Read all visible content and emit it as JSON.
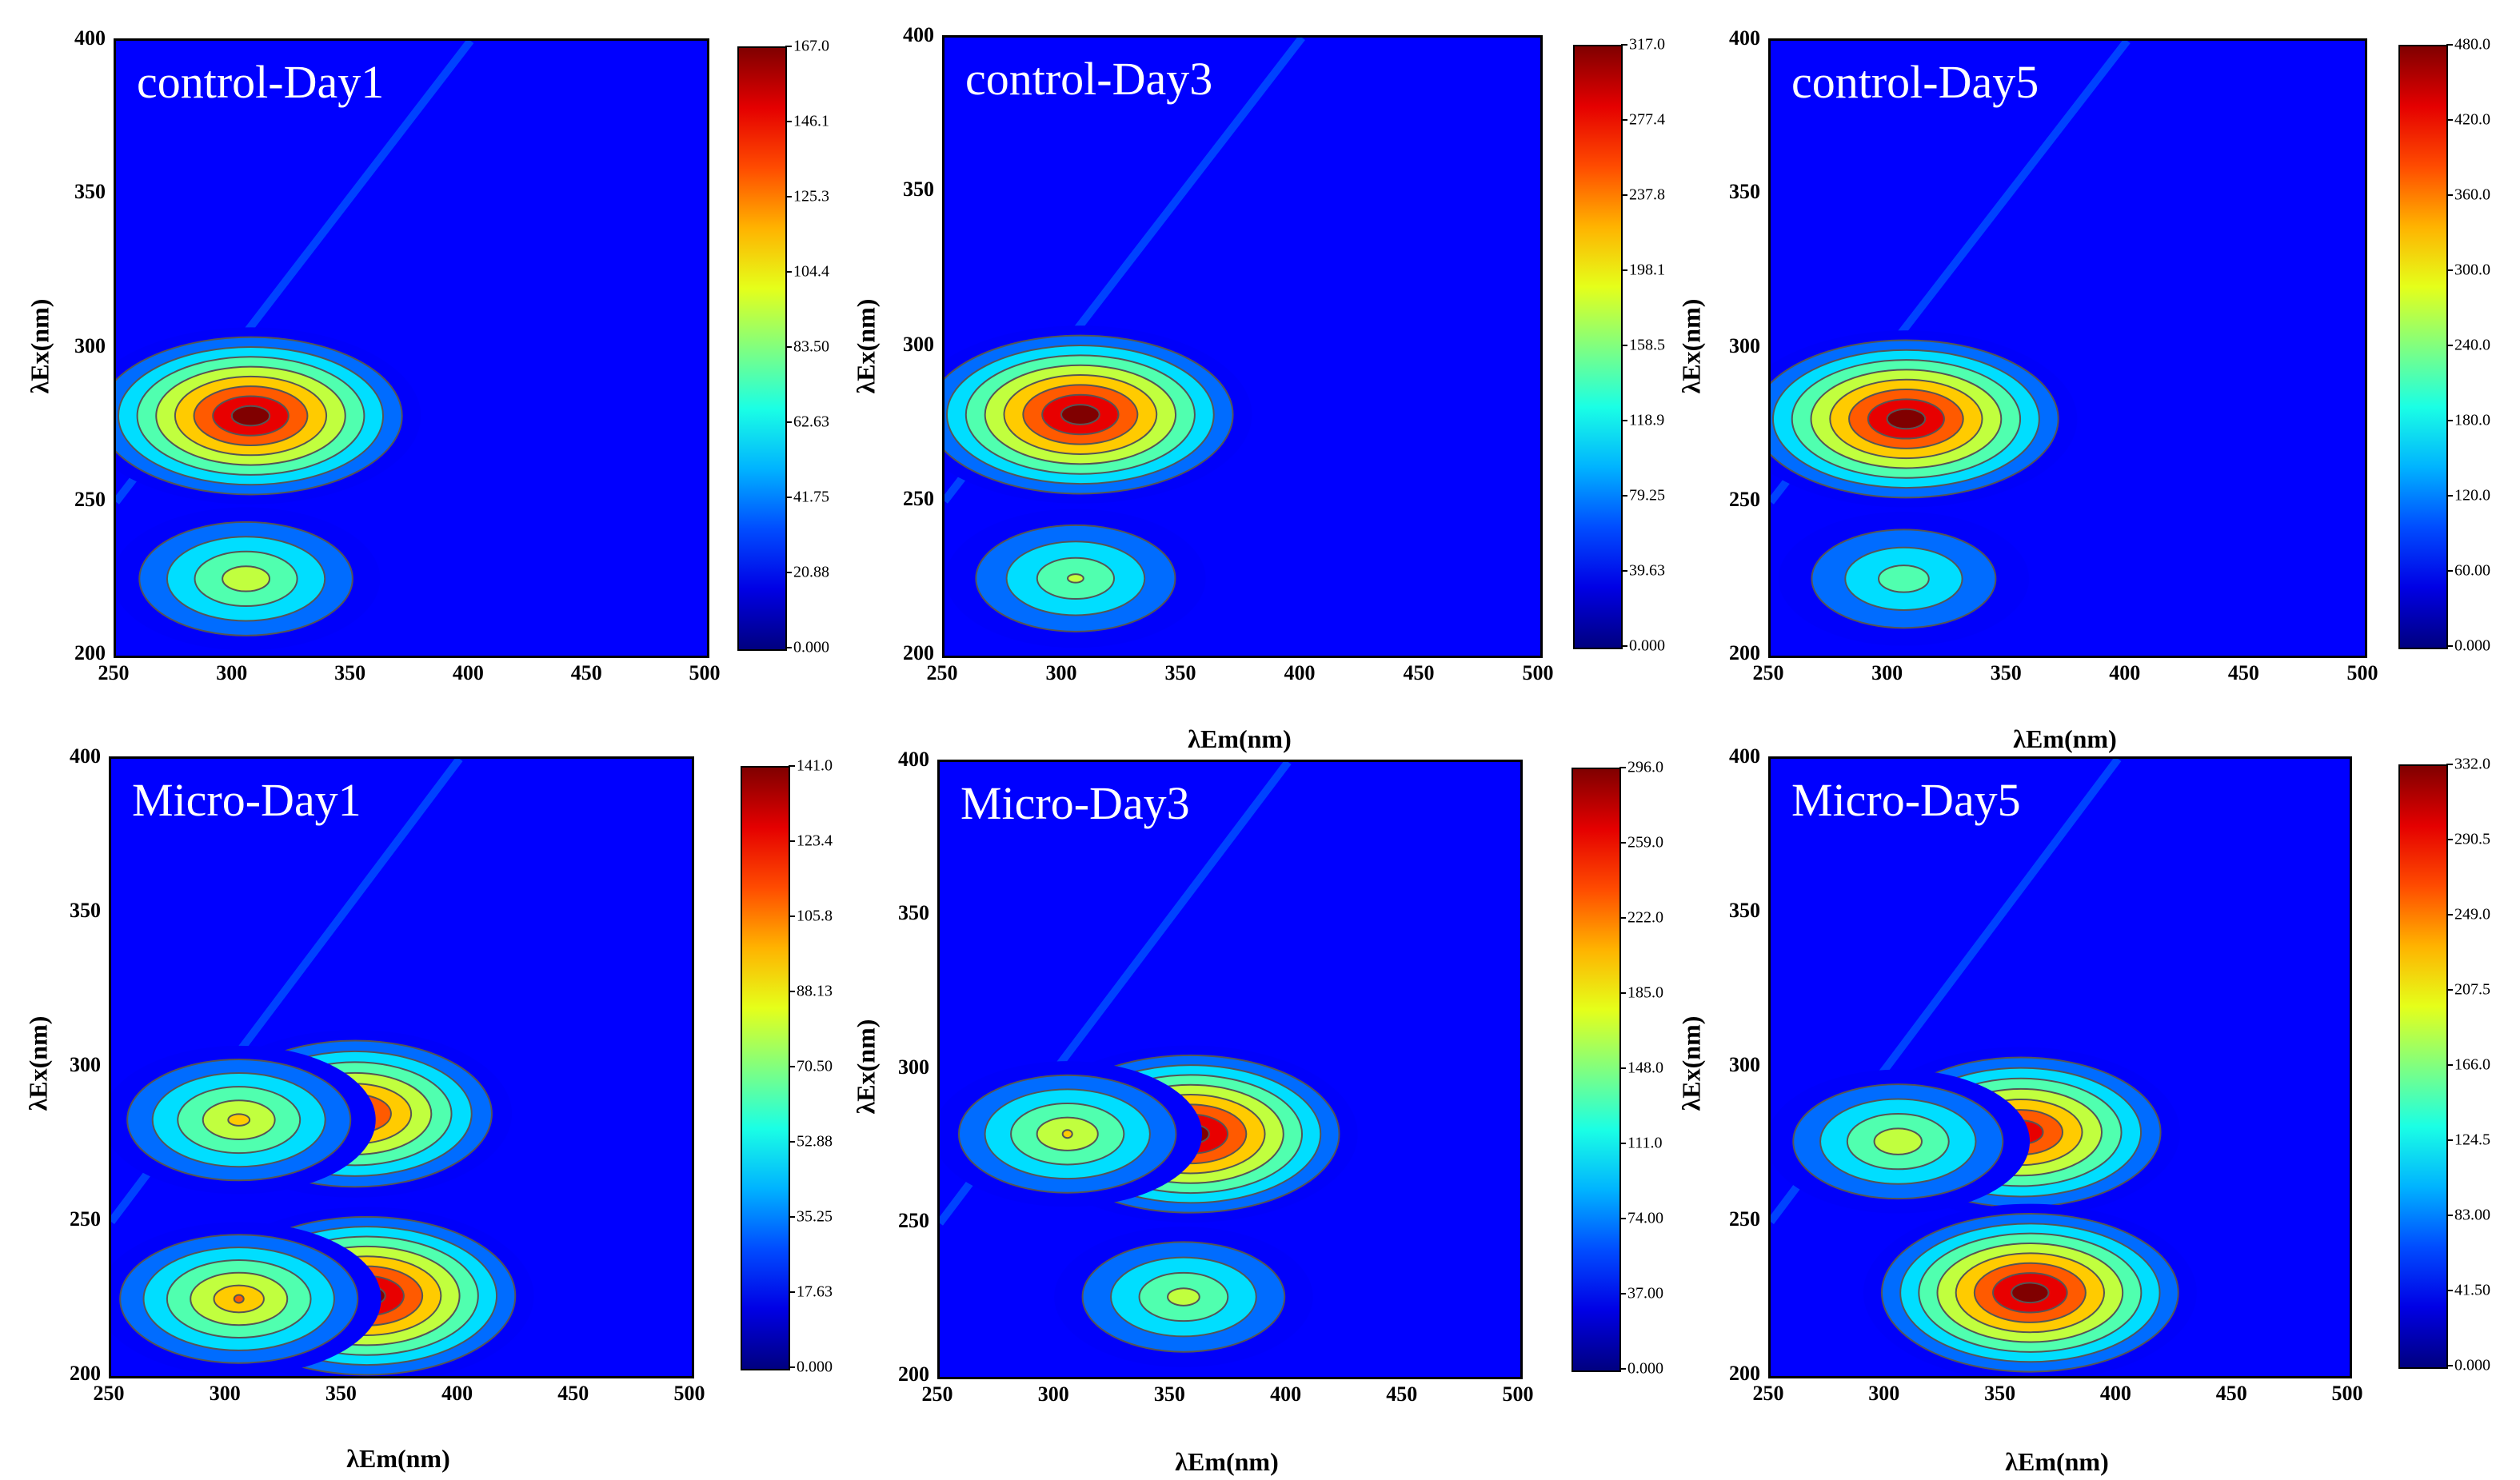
{
  "axes": {
    "x_label": "λEm(nm)",
    "y_label": "λEx(nm)",
    "x_ticks": [
      "250",
      "300",
      "350",
      "400",
      "450",
      "500"
    ],
    "y_ticks": [
      "200",
      "250",
      "300",
      "350",
      "400"
    ]
  },
  "chart_data": [
    {
      "type": "heatmap",
      "title": "control-Day1",
      "xlim": [
        250,
        500
      ],
      "ylim": [
        200,
        400
      ],
      "colorbar_ticks": [
        "0.000",
        "20.88",
        "41.75",
        "62.63",
        "83.50",
        "104.4",
        "125.3",
        "146.1",
        "167.0"
      ],
      "max_value": 167.0,
      "peaks": [
        {
          "em": 307,
          "ex": 278,
          "value": 167.0
        },
        {
          "em": 305,
          "ex": 225,
          "value": 90.0
        }
      ]
    },
    {
      "type": "heatmap",
      "title": "control-Day3",
      "xlim": [
        250,
        500
      ],
      "ylim": [
        200,
        400
      ],
      "colorbar_ticks": [
        "0.000",
        "39.63",
        "79.25",
        "118.9",
        "158.5",
        "198.1",
        "237.8",
        "277.4",
        "317.0"
      ],
      "max_value": 317.0,
      "peaks": [
        {
          "em": 307,
          "ex": 278,
          "value": 317.0
        },
        {
          "em": 305,
          "ex": 225,
          "value": 150.0
        }
      ]
    },
    {
      "type": "heatmap",
      "title": "control-Day5",
      "xlim": [
        250,
        500
      ],
      "ylim": [
        200,
        400
      ],
      "colorbar_ticks": [
        "0.000",
        "60.00",
        "120.0",
        "180.0",
        "240.0",
        "300.0",
        "360.0",
        "420.0",
        "480.0"
      ],
      "max_value": 480.0,
      "peaks": [
        {
          "em": 307,
          "ex": 277,
          "value": 480.0
        },
        {
          "em": 306,
          "ex": 225,
          "value": 200.0
        }
      ]
    },
    {
      "type": "heatmap",
      "title": "Micro-Day1",
      "xlim": [
        250,
        500
      ],
      "ylim": [
        200,
        400
      ],
      "colorbar_ticks": [
        "0.000",
        "17.63",
        "35.25",
        "52.88",
        "70.50",
        "88.13",
        "105.8",
        "123.4",
        "141.0"
      ],
      "max_value": 141.0,
      "peaks": [
        {
          "em": 355,
          "ex": 285,
          "value": 122.0
        },
        {
          "em": 360,
          "ex": 226,
          "value": 141.0
        },
        {
          "em": 305,
          "ex": 283,
          "value": 85.0
        },
        {
          "em": 305,
          "ex": 225,
          "value": 95.0
        }
      ]
    },
    {
      "type": "heatmap",
      "title": "Micro-Day3",
      "xlim": [
        250,
        500
      ],
      "ylim": [
        200,
        400
      ],
      "colorbar_ticks": [
        "0.000",
        "37.00",
        "74.00",
        "111.0",
        "148.0",
        "185.0",
        "222.0",
        "259.0",
        "296.0"
      ],
      "max_value": 296.0,
      "peaks": [
        {
          "em": 358,
          "ex": 279,
          "value": 296.0
        },
        {
          "em": 355,
          "ex": 226,
          "value": 150.0
        },
        {
          "em": 305,
          "ex": 279,
          "value": 170.0
        }
      ]
    },
    {
      "type": "heatmap",
      "title": "Micro-Day5",
      "xlim": [
        250,
        500
      ],
      "ylim": [
        200,
        400
      ],
      "colorbar_ticks": [
        "0.000",
        "41.50",
        "83.00",
        "124.5",
        "166.0",
        "207.5",
        "249.0",
        "290.5",
        "332.0"
      ],
      "max_value": 332.0,
      "peaks": [
        {
          "em": 358,
          "ex": 279,
          "value": 300.0
        },
        {
          "em": 362,
          "ex": 227,
          "value": 332.0
        },
        {
          "em": 305,
          "ex": 276,
          "value": 180.0
        }
      ]
    }
  ]
}
